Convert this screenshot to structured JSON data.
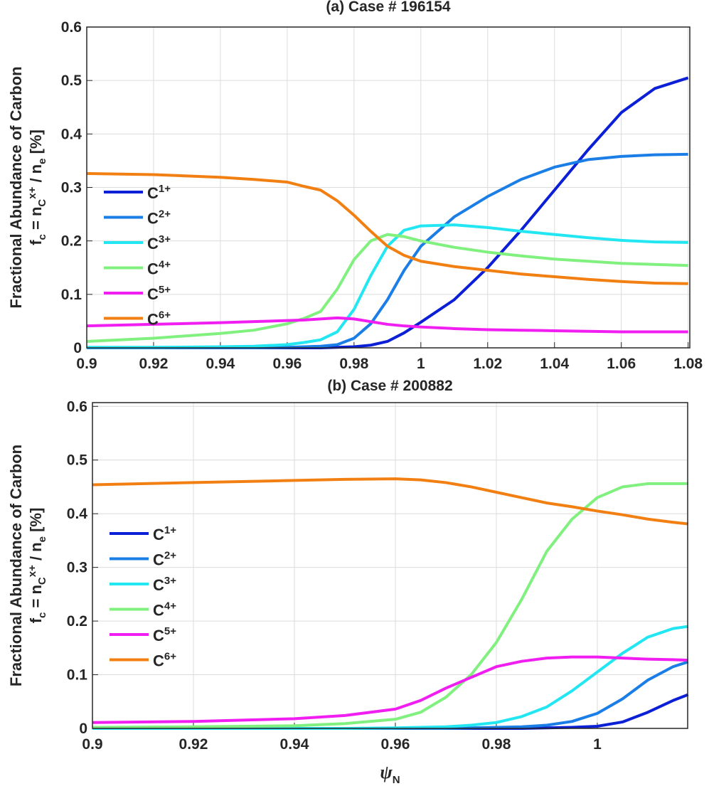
{
  "chart_data": [
    {
      "type": "line",
      "title": "(a) Case # 196154",
      "ylabel": [
        "Fractional Abundance of Carbon",
        [
          "f",
          "c",
          " = n",
          "C",
          "x+",
          " / n",
          "e",
          " [%]"
        ]
      ],
      "x": [
        0.9,
        0.92,
        0.94,
        0.95,
        0.96,
        0.965,
        0.97,
        0.975,
        0.98,
        0.985,
        0.99,
        0.995,
        1.0,
        1.01,
        1.02,
        1.03,
        1.04,
        1.05,
        1.06,
        1.07,
        1.08
      ],
      "series": [
        {
          "name": "C1+",
          "color": "#0b1fd6",
          "values": [
            0,
            0,
            0,
            0,
            0,
            0,
            0,
            0.001,
            0.002,
            0.005,
            0.012,
            0.028,
            0.048,
            0.09,
            0.15,
            0.22,
            0.295,
            0.37,
            0.44,
            0.485,
            0.505
          ]
        },
        {
          "name": "C2+",
          "color": "#1a7ee6",
          "values": [
            0,
            0,
            0,
            0,
            0.001,
            0.002,
            0.003,
            0.006,
            0.018,
            0.045,
            0.09,
            0.145,
            0.19,
            0.245,
            0.283,
            0.315,
            0.338,
            0.352,
            0.358,
            0.361,
            0.362
          ]
        },
        {
          "name": "C3+",
          "color": "#22e6f2",
          "values": [
            0.001,
            0.001,
            0.002,
            0.003,
            0.006,
            0.01,
            0.015,
            0.03,
            0.072,
            0.135,
            0.19,
            0.22,
            0.228,
            0.23,
            0.225,
            0.218,
            0.212,
            0.206,
            0.201,
            0.198,
            0.197
          ]
        },
        {
          "name": "C4+",
          "color": "#80f07e",
          "values": [
            0.012,
            0.018,
            0.027,
            0.033,
            0.045,
            0.055,
            0.068,
            0.11,
            0.165,
            0.2,
            0.212,
            0.208,
            0.2,
            0.188,
            0.179,
            0.172,
            0.166,
            0.162,
            0.158,
            0.156,
            0.154
          ]
        },
        {
          "name": "C5+",
          "color": "#f01ef0",
          "values": [
            0.041,
            0.044,
            0.047,
            0.049,
            0.051,
            0.052,
            0.054,
            0.056,
            0.054,
            0.049,
            0.044,
            0.041,
            0.039,
            0.036,
            0.034,
            0.033,
            0.032,
            0.031,
            0.03,
            0.03,
            0.03
          ]
        },
        {
          "name": "C6+",
          "color": "#f27f12",
          "values": [
            0.326,
            0.324,
            0.319,
            0.315,
            0.31,
            0.302,
            0.295,
            0.275,
            0.248,
            0.218,
            0.19,
            0.173,
            0.162,
            0.152,
            0.145,
            0.138,
            0.133,
            0.128,
            0.124,
            0.121,
            0.12
          ]
        }
      ],
      "xlim": [
        0.9,
        1.0805
      ],
      "xticks": [
        0.9,
        0.92,
        0.94,
        0.96,
        0.98,
        1,
        1.02,
        1.04,
        1.06,
        1.08
      ],
      "ylim": [
        0,
        0.6
      ],
      "yticks": [
        0,
        0.1,
        0.2,
        0.3,
        0.4,
        0.5,
        0.6
      ],
      "grid": true,
      "legend": "west"
    },
    {
      "type": "line",
      "title": "(b) Case # 200882",
      "xlabel": "ψN",
      "ylabel": [
        "Fractional Abundance of Carbon",
        [
          "f",
          "c",
          " = n",
          "C",
          "x+",
          " / n",
          "e",
          " [%]"
        ]
      ],
      "x": [
        0.9,
        0.92,
        0.94,
        0.95,
        0.96,
        0.965,
        0.97,
        0.975,
        0.98,
        0.985,
        0.99,
        0.995,
        1.0,
        1.005,
        1.01,
        1.015,
        1.018
      ],
      "series": [
        {
          "name": "C1+",
          "color": "#0b1fd6",
          "values": [
            0,
            0,
            0,
            0,
            0,
            0,
            0,
            0,
            0,
            0,
            0.001,
            0.002,
            0.004,
            0.012,
            0.03,
            0.052,
            0.063
          ]
        },
        {
          "name": "C2+",
          "color": "#1a7ee6",
          "values": [
            0,
            0,
            0,
            0,
            0,
            0,
            0,
            0.001,
            0.002,
            0.003,
            0.006,
            0.013,
            0.028,
            0.055,
            0.09,
            0.115,
            0.124
          ]
        },
        {
          "name": "C3+",
          "color": "#22e6f2",
          "values": [
            0,
            0,
            0,
            0,
            0.001,
            0.002,
            0.003,
            0.006,
            0.011,
            0.022,
            0.04,
            0.07,
            0.105,
            0.14,
            0.17,
            0.186,
            0.19
          ]
        },
        {
          "name": "C4+",
          "color": "#80f07e",
          "values": [
            0.002,
            0.003,
            0.005,
            0.009,
            0.017,
            0.03,
            0.058,
            0.1,
            0.16,
            0.24,
            0.33,
            0.39,
            0.43,
            0.45,
            0.456,
            0.456,
            0.456
          ]
        },
        {
          "name": "C5+",
          "color": "#f01ef0",
          "values": [
            0.011,
            0.013,
            0.018,
            0.024,
            0.036,
            0.052,
            0.075,
            0.095,
            0.115,
            0.125,
            0.131,
            0.133,
            0.133,
            0.131,
            0.129,
            0.128,
            0.127
          ]
        },
        {
          "name": "C6+",
          "color": "#f27f12",
          "values": [
            0.454,
            0.458,
            0.462,
            0.464,
            0.465,
            0.463,
            0.458,
            0.45,
            0.44,
            0.43,
            0.42,
            0.413,
            0.405,
            0.398,
            0.39,
            0.384,
            0.381
          ]
        }
      ],
      "xlim": [
        0.9,
        1.0179
      ],
      "xticks": [
        0.9,
        0.92,
        0.94,
        0.96,
        0.98,
        1
      ],
      "ylim": [
        0,
        0.607
      ],
      "yticks": [
        0,
        0.1,
        0.2,
        0.3,
        0.4,
        0.5,
        0.6
      ],
      "grid": true,
      "legend": "west"
    }
  ]
}
